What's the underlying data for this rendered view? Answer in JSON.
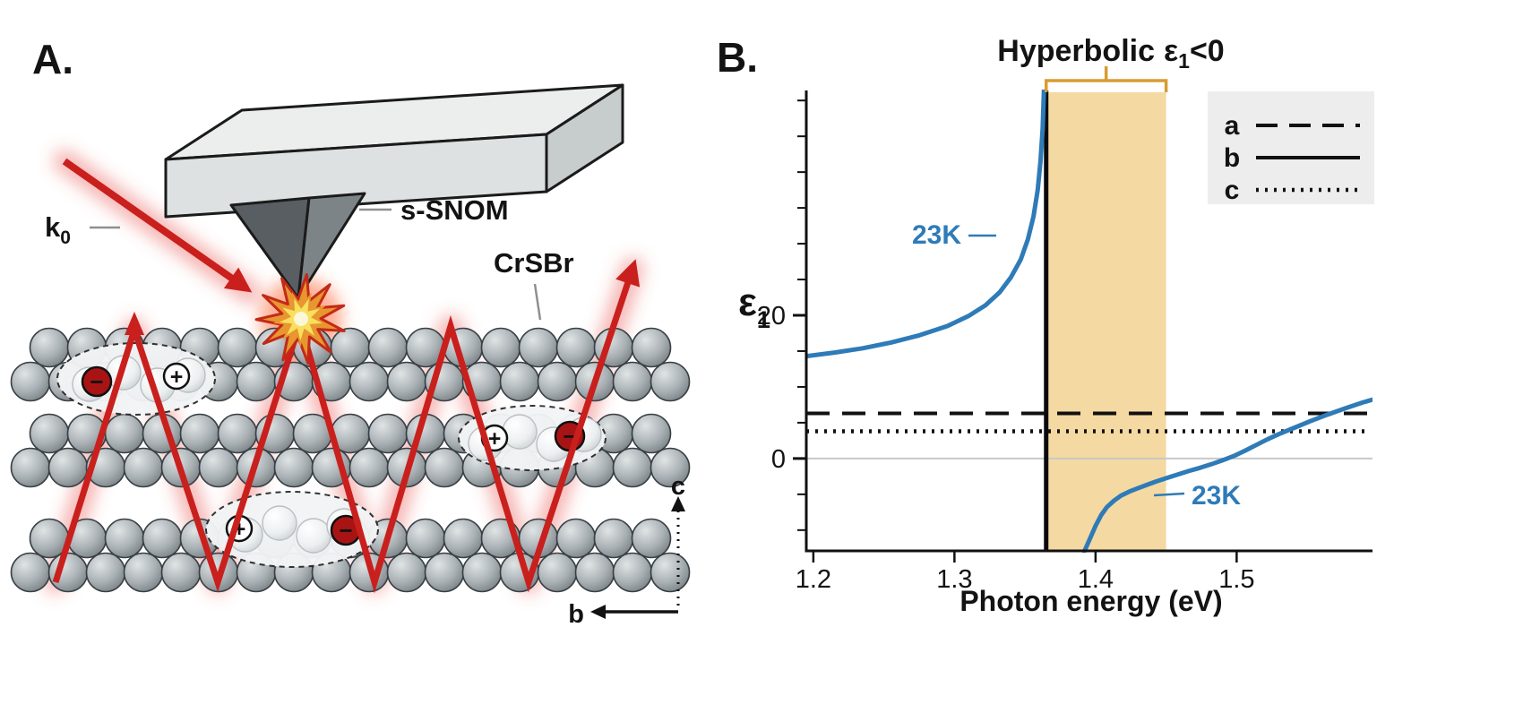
{
  "panel_a": {
    "label": "A.",
    "k0": {
      "base": "k",
      "sub": "0"
    },
    "snom_label": "s-SNOM",
    "crystal_label": "CrSBr",
    "axes": {
      "vertical": "c",
      "horizontal": "b"
    },
    "charges": {
      "negative": "−",
      "positive": "+"
    },
    "colors": {
      "beam_red": "#c9201d",
      "electron_fill": "#a81414"
    }
  },
  "panel_b": {
    "label": "B.",
    "title": {
      "prefix": "Hyperbolic",
      "epsilon": "ε",
      "sub": "1",
      "suffix": "<0"
    },
    "ylabel": {
      "epsilon": "ε",
      "sub": "1"
    },
    "curve_labels": {
      "left": "23K",
      "right": "23K"
    }
  },
  "chart_data": {
    "type": "line",
    "title": "Hyperbolic ε1<0",
    "xlabel": "Photon energy (eV)",
    "ylabel": "ε1",
    "xlim": [
      1.195,
      1.595
    ],
    "ylim": [
      -12.9,
      50.9
    ],
    "x_ticks": [
      1.2,
      1.3,
      1.4,
      1.5
    ],
    "y_ticks": [
      0,
      20
    ],
    "y_minor_step": 5,
    "grid": false,
    "legend_position": "top-right",
    "hyperbolic_band": {
      "x_from": 1.365,
      "x_to": 1.45,
      "color": "#f5d9a2"
    },
    "resonance_line_x": 1.365,
    "series": [
      {
        "name": "epsilon1-b-axis-23K-below-resonance",
        "type": "curve",
        "label": "23K",
        "color": "#2e7bb8",
        "points": [
          [
            1.195,
            14.3
          ],
          [
            1.215,
            14.8
          ],
          [
            1.235,
            15.4
          ],
          [
            1.255,
            16.2
          ],
          [
            1.275,
            17.2
          ],
          [
            1.295,
            18.5
          ],
          [
            1.31,
            19.9
          ],
          [
            1.322,
            21.4
          ],
          [
            1.332,
            23.2
          ],
          [
            1.34,
            25.3
          ],
          [
            1.347,
            27.8
          ],
          [
            1.352,
            30.6
          ],
          [
            1.356,
            33.8
          ],
          [
            1.359,
            37.5
          ],
          [
            1.361,
            41.5
          ],
          [
            1.3625,
            46
          ],
          [
            1.3635,
            52
          ]
        ]
      },
      {
        "name": "epsilon1-b-axis-23K-above-resonance",
        "type": "curve",
        "label": "23K",
        "color": "#2e7bb8",
        "points": [
          [
            1.392,
            -13
          ],
          [
            1.396,
            -11.2
          ],
          [
            1.4,
            -9.4
          ],
          [
            1.404,
            -7.9
          ],
          [
            1.408,
            -6.8
          ],
          [
            1.413,
            -5.9
          ],
          [
            1.418,
            -5.2
          ],
          [
            1.424,
            -4.6
          ],
          [
            1.43,
            -4.15
          ],
          [
            1.436,
            -3.7
          ],
          [
            1.443,
            -3.2
          ],
          [
            1.45,
            -2.75
          ],
          [
            1.458,
            -2.25
          ],
          [
            1.466,
            -1.75
          ],
          [
            1.474,
            -1.3
          ],
          [
            1.482,
            -0.8
          ],
          [
            1.49,
            -0.25
          ],
          [
            1.498,
            0.35
          ],
          [
            1.506,
            1.1
          ],
          [
            1.514,
            1.9
          ],
          [
            1.522,
            2.7
          ],
          [
            1.531,
            3.5
          ],
          [
            1.541,
            4.3
          ],
          [
            1.552,
            5.2
          ],
          [
            1.564,
            6.1
          ],
          [
            1.577,
            7.0
          ],
          [
            1.589,
            7.8
          ],
          [
            1.596,
            8.2
          ]
        ]
      },
      {
        "name": "a",
        "type": "hline",
        "style": "dashed",
        "value": 6.3,
        "color": "#111111"
      },
      {
        "name": "c",
        "type": "hline",
        "style": "dotted",
        "value": 3.8,
        "color": "#111111"
      }
    ],
    "legend": {
      "entries": [
        {
          "label": "a",
          "style": "dashed"
        },
        {
          "label": "b",
          "style": "solid"
        },
        {
          "label": "c",
          "style": "dotted"
        }
      ]
    }
  }
}
